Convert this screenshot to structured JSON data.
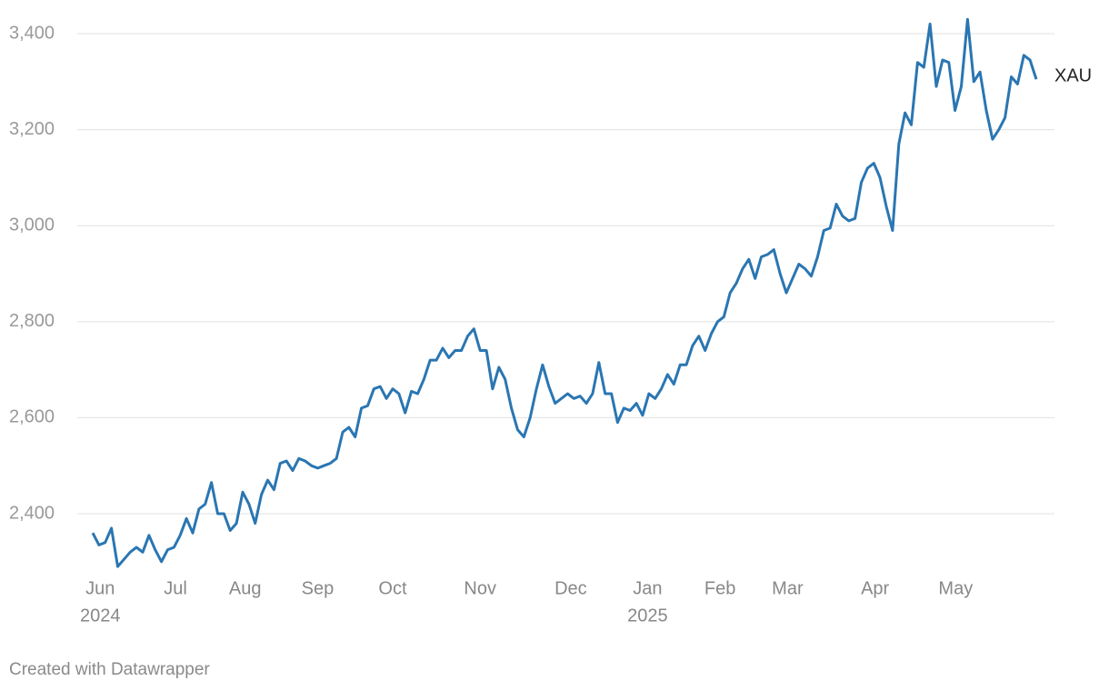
{
  "chart_data": {
    "type": "line",
    "series": [
      {
        "name": "XAU",
        "color": "#2a76b2",
        "values": [
          2360,
          2335,
          2340,
          2370,
          2290,
          2305,
          2320,
          2330,
          2320,
          2355,
          2325,
          2300,
          2325,
          2330,
          2355,
          2390,
          2360,
          2410,
          2420,
          2465,
          2400,
          2400,
          2365,
          2380,
          2445,
          2420,
          2380,
          2440,
          2470,
          2450,
          2505,
          2510,
          2490,
          2515,
          2510,
          2500,
          2495,
          2500,
          2505,
          2515,
          2570,
          2580,
          2560,
          2620,
          2625,
          2660,
          2665,
          2640,
          2660,
          2650,
          2610,
          2655,
          2650,
          2680,
          2720,
          2720,
          2745,
          2725,
          2740,
          2740,
          2770,
          2785,
          2740,
          2740,
          2660,
          2705,
          2680,
          2620,
          2575,
          2560,
          2600,
          2660,
          2710,
          2665,
          2630,
          2640,
          2650,
          2640,
          2645,
          2630,
          2650,
          2715,
          2650,
          2650,
          2590,
          2620,
          2615,
          2630,
          2605,
          2650,
          2640,
          2660,
          2690,
          2670,
          2710,
          2710,
          2750,
          2770,
          2740,
          2775,
          2800,
          2810,
          2860,
          2880,
          2910,
          2930,
          2890,
          2935,
          2940,
          2950,
          2900,
          2860,
          2890,
          2920,
          2910,
          2895,
          2935,
          2990,
          2995,
          3045,
          3020,
          3010,
          3015,
          3090,
          3120,
          3130,
          3100,
          3040,
          2990,
          3170,
          3235,
          3210,
          3340,
          3330,
          3420,
          3290,
          3345,
          3340,
          3240,
          3290,
          3430,
          3300,
          3320,
          3240,
          3180,
          3200,
          3225,
          3310,
          3295,
          3355,
          3345,
          3305
        ]
      }
    ],
    "xlim": [
      0,
      151
    ],
    "xticks": [
      {
        "value": 1.2,
        "label": "Jun",
        "year": "2024"
      },
      {
        "value": 13.25,
        "label": "Jul"
      },
      {
        "value": 24.4,
        "label": "Aug"
      },
      {
        "value": 36,
        "label": "Sep"
      },
      {
        "value": 48,
        "label": "Oct"
      },
      {
        "value": 62,
        "label": "Nov"
      },
      {
        "value": 76.5,
        "label": "Dec"
      },
      {
        "value": 88.8,
        "label": "Jan",
        "year": "2025"
      },
      {
        "value": 100.4,
        "label": "Feb"
      },
      {
        "value": 111.2,
        "label": "Mar"
      },
      {
        "value": 125.2,
        "label": "Apr"
      },
      {
        "value": 138.1,
        "label": "May"
      }
    ],
    "ylim": [
      2280,
      3400
    ],
    "yticks": [
      {
        "value": 2400,
        "label": "2,400"
      },
      {
        "value": 2600,
        "label": "2,600"
      },
      {
        "value": 2800,
        "label": "2,800"
      },
      {
        "value": 3000,
        "label": "3,000"
      },
      {
        "value": 3200,
        "label": "3,200"
      },
      {
        "value": 3400,
        "label": "3,400"
      }
    ],
    "grid": true,
    "source": "Created with Datawrapper"
  }
}
